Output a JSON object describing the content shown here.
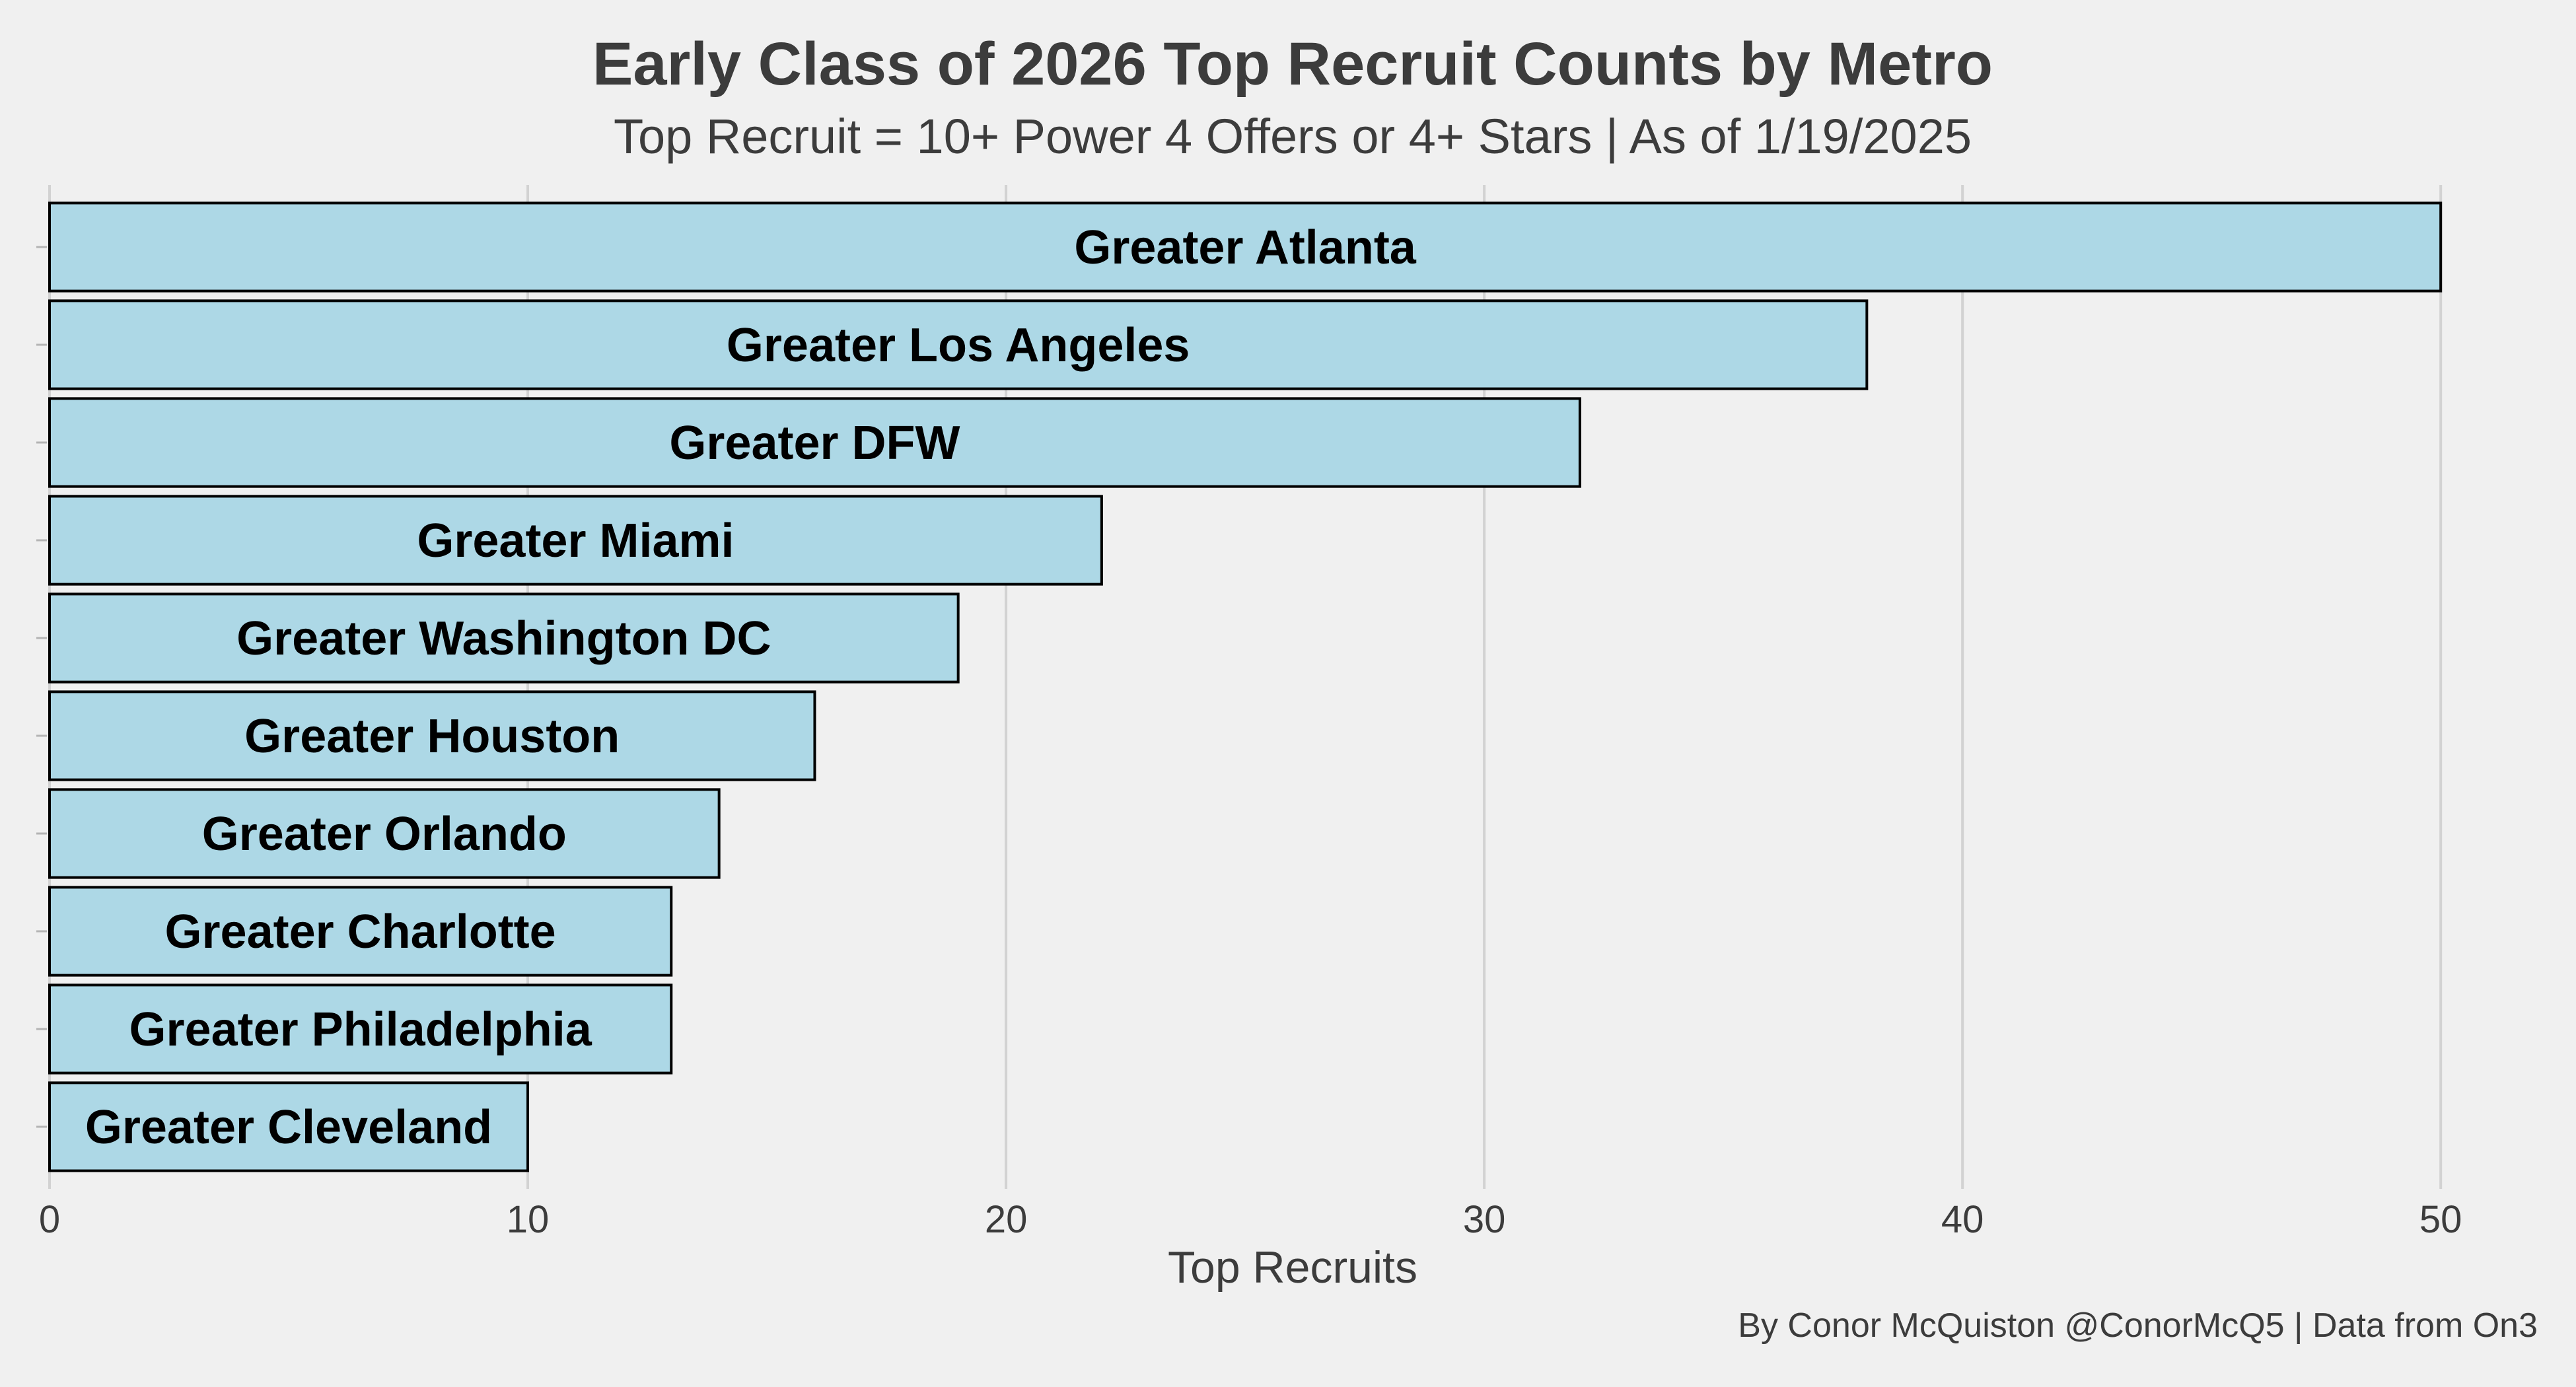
{
  "chart_data": {
    "type": "bar",
    "orientation": "horizontal",
    "title": "Early Class of 2026 Top Recruit Counts by Metro",
    "subtitle": "Top Recruit = 10+ Power 4 Offers or 4+ Stars | As of 1/19/2025",
    "xlabel": "Top Recruits",
    "ylabel": "",
    "caption": "By Conor McQuiston @ConorMcQ5 | Data from On3",
    "xlim": [
      0,
      52
    ],
    "xticks": [
      0,
      10,
      20,
      30,
      40,
      50
    ],
    "grid": "vertical",
    "legend": "none",
    "categories": [
      "Greater Atlanta",
      "Greater Los Angeles",
      "Greater DFW",
      "Greater Miami",
      "Greater Washington DC",
      "Greater Houston",
      "Greater Orlando",
      "Greater Charlotte",
      "Greater Philadelphia",
      "Greater Cleveland"
    ],
    "values": [
      50,
      38,
      32,
      22,
      19,
      16,
      14,
      13,
      13,
      10
    ],
    "bar_color": "#add8e6",
    "bar_edge_color": "#000000",
    "background_color": "#f0f0f0"
  }
}
